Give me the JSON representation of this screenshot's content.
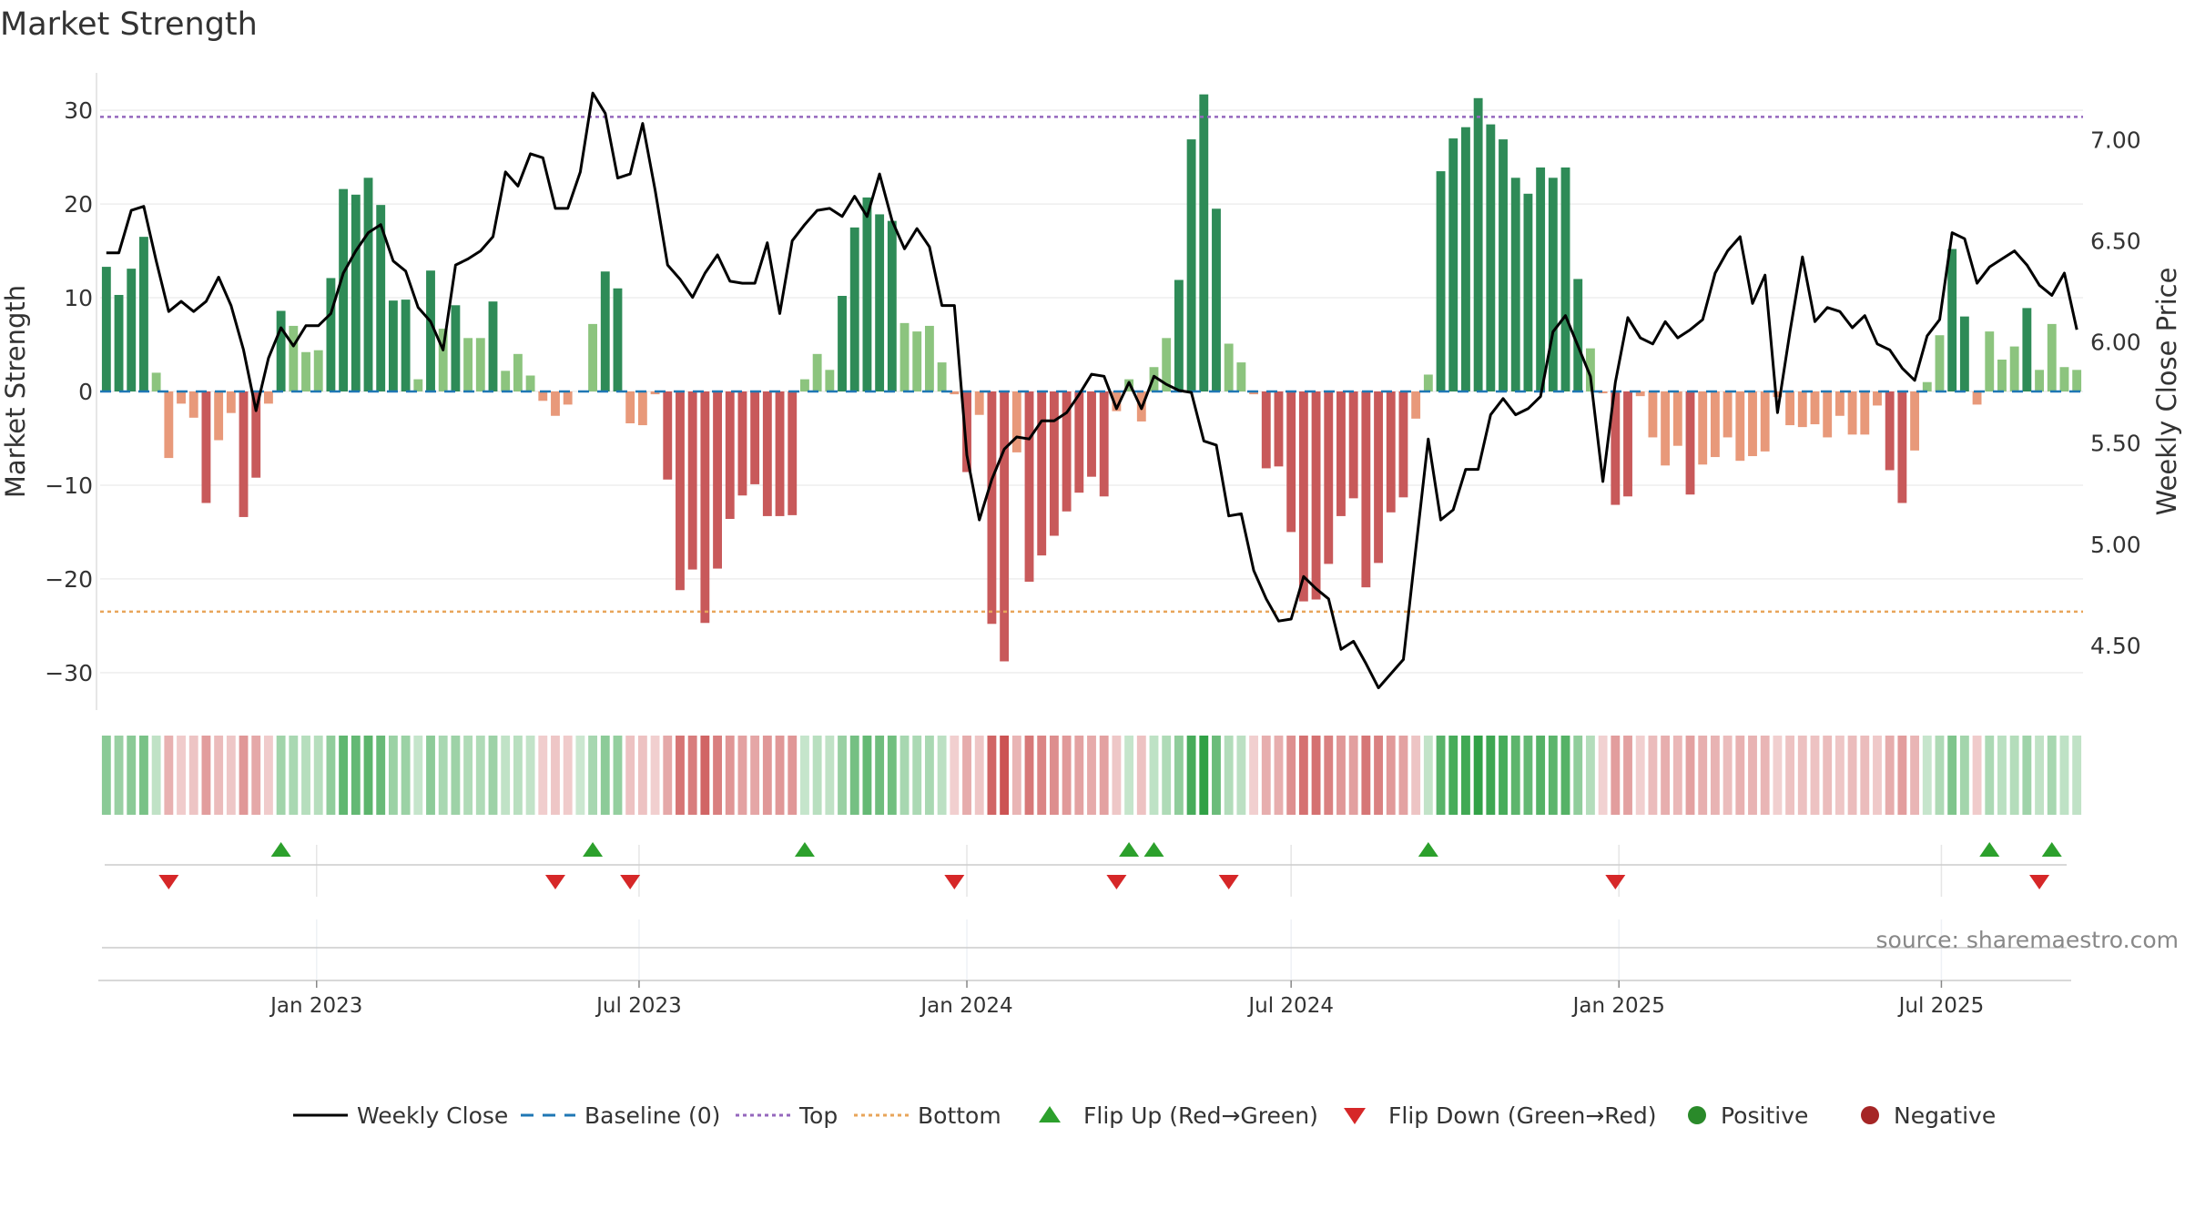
{
  "chart_data": {
    "type": "bar+line",
    "title": "Market Strength",
    "ylabel_left": "Market Strength",
    "ylabel_right": "Weekly Close Price",
    "source_note": "source: sharemaestro.com",
    "y_left_range": [
      -34,
      34
    ],
    "y_left_ticks": [
      30,
      20,
      10,
      0,
      -10,
      -20,
      -30
    ],
    "y_left_tick_labels": [
      "30",
      "20",
      "10",
      "0",
      "−10",
      "−20",
      "−30"
    ],
    "y_right_range": [
      4.18,
      7.33
    ],
    "y_right_ticks": [
      7.0,
      6.5,
      6.0,
      5.5,
      5.0,
      4.5
    ],
    "y_right_tick_labels": [
      "7.00",
      "6.50",
      "6.00",
      "5.50",
      "5.00",
      "4.50"
    ],
    "top_line": 29.3,
    "bottom_line": -23.5,
    "baseline": 0,
    "x_start": "2022-09-05",
    "week_step_days": 7,
    "x_ticks": [
      {
        "date": "2023-01-01",
        "label": "Jan 2023"
      },
      {
        "date": "2023-07-01",
        "label": "Jul 2023"
      },
      {
        "date": "2024-01-01",
        "label": "Jan 2024"
      },
      {
        "date": "2024-07-01",
        "label": "Jul 2024"
      },
      {
        "date": "2025-01-01",
        "label": "Jan 2025"
      },
      {
        "date": "2025-07-01",
        "label": "Jul 2025"
      }
    ],
    "strength": [
      13.3,
      10.3,
      13.1,
      16.5,
      2.0,
      -7.1,
      -1.3,
      -2.8,
      -11.9,
      -5.2,
      -2.3,
      -13.4,
      -9.2,
      -1.3,
      8.6,
      7.0,
      4.2,
      4.4,
      12.1,
      21.6,
      21.0,
      22.8,
      19.9,
      9.7,
      9.8,
      1.3,
      12.9,
      6.7,
      9.2,
      5.7,
      5.7,
      9.6,
      2.2,
      4.0,
      1.7,
      -1.0,
      -2.6,
      -1.4,
      0.0,
      7.2,
      12.8,
      11.0,
      -3.4,
      -3.6,
      -0.3,
      -9.4,
      -21.2,
      -19.0,
      -24.7,
      -18.9,
      -13.6,
      -11.1,
      -9.9,
      -13.3,
      -13.3,
      -13.2,
      1.3,
      4.0,
      2.3,
      10.2,
      17.5,
      20.7,
      18.9,
      18.2,
      7.3,
      6.4,
      7.0,
      3.1,
      -0.3,
      -8.6,
      -2.5,
      -24.8,
      -28.8,
      -6.5,
      -20.3,
      -17.5,
      -15.4,
      -12.8,
      -10.8,
      -9.1,
      -11.2,
      -2.1,
      1.3,
      -3.2,
      2.6,
      5.7,
      11.9,
      26.9,
      31.7,
      19.5,
      5.1,
      3.1,
      -0.3,
      -8.2,
      -8.0,
      -15.0,
      -22.4,
      -22.2,
      -18.4,
      -13.3,
      -11.4,
      -20.9,
      -18.3,
      -12.9,
      -11.3,
      -2.9,
      1.8,
      23.5,
      27.0,
      28.2,
      31.3,
      28.5,
      26.9,
      22.8,
      21.1,
      23.9,
      22.8,
      23.9,
      12.0,
      4.6,
      -0.2,
      -12.1,
      -11.2,
      -0.5,
      -4.9,
      -7.9,
      -5.8,
      -11.0,
      -7.8,
      -7.0,
      -4.9,
      -7.4,
      -6.9,
      -6.4,
      -0.6,
      -3.6,
      -3.8,
      -3.5,
      -4.9,
      -2.6,
      -4.6,
      -4.6,
      -1.5,
      -8.4,
      -11.9,
      -6.3,
      1.0,
      6.0,
      15.2,
      8.0,
      -1.4,
      6.4,
      3.4,
      4.8,
      8.9,
      2.3,
      7.2,
      2.6,
      2.3
    ],
    "weekly_close": [
      6.44,
      6.44,
      6.65,
      6.67,
      6.4,
      6.15,
      6.2,
      6.15,
      6.2,
      6.32,
      6.18,
      5.96,
      5.66,
      5.92,
      6.07,
      5.98,
      6.08,
      6.08,
      6.14,
      6.34,
      6.45,
      6.54,
      6.58,
      6.4,
      6.35,
      6.17,
      6.1,
      5.96,
      6.38,
      6.41,
      6.45,
      6.52,
      6.84,
      6.77,
      6.93,
      6.91,
      6.66,
      6.66,
      6.84,
      7.23,
      7.13,
      6.81,
      6.83,
      7.08,
      6.75,
      6.38,
      6.31,
      6.22,
      6.34,
      6.43,
      6.3,
      6.29,
      6.29,
      6.49,
      6.14,
      6.5,
      6.58,
      6.65,
      6.66,
      6.62,
      6.72,
      6.62,
      6.83,
      6.6,
      6.46,
      6.56,
      6.47,
      6.18,
      6.18,
      5.44,
      5.12,
      5.32,
      5.47,
      5.53,
      5.52,
      5.61,
      5.61,
      5.65,
      5.74,
      5.84,
      5.83,
      5.67,
      5.8,
      5.67,
      5.83,
      5.79,
      5.76,
      5.75,
      5.51,
      5.49,
      5.14,
      5.15,
      4.87,
      4.73,
      4.62,
      4.63,
      4.84,
      4.78,
      4.73,
      4.48,
      4.52,
      4.41,
      4.29,
      4.36,
      4.43,
      4.98,
      5.52,
      5.12,
      5.17,
      5.37,
      5.37,
      5.64,
      5.72,
      5.64,
      5.67,
      5.73,
      6.05,
      6.13,
      5.98,
      5.83,
      5.31,
      5.8,
      6.12,
      6.02,
      5.99,
      6.1,
      6.02,
      6.06,
      6.11,
      6.34,
      6.45,
      6.52,
      6.19,
      6.33,
      5.65,
      6.05,
      6.42,
      6.1,
      6.17,
      6.15,
      6.07,
      6.13,
      5.99,
      5.96,
      5.87,
      5.81,
      6.03,
      6.11,
      6.54,
      6.51,
      6.29,
      6.37,
      6.41,
      6.45,
      6.38,
      6.28,
      6.23,
      6.34,
      6.06
    ],
    "flip_up_weeks": [
      14,
      39,
      56,
      82,
      84,
      106,
      151,
      156
    ],
    "flip_down_weeks": [
      5,
      36,
      42,
      68,
      81,
      90,
      121,
      155
    ],
    "legend": [
      {
        "name": "Weekly Close",
        "color": "#000000",
        "symbol": "line"
      },
      {
        "name": "Baseline (0)",
        "color": "#1f77b4",
        "symbol": "dash"
      },
      {
        "name": "Top",
        "color": "#9467bd",
        "symbol": "dot"
      },
      {
        "name": "Bottom",
        "color": "#e8a55a",
        "symbol": "dot"
      },
      {
        "name": "Flip Up (Red→Green)",
        "color": "#2ca02c",
        "symbol": "triangle-up"
      },
      {
        "name": "Flip Down (Green→Red)",
        "color": "#d62728",
        "symbol": "triangle-down"
      },
      {
        "name": "Positive",
        "color": "#2a8a2a",
        "symbol": "circle"
      },
      {
        "name": "Negative",
        "color": "#a52525",
        "symbol": "circle"
      }
    ],
    "colors": {
      "pos_dark": "#2e8b57",
      "pos_light": "#8cc47e",
      "neg_dark": "#c8595a",
      "neg_light": "#e8997a",
      "grid": "#eeeeee",
      "axis_text": "#333333"
    }
  }
}
